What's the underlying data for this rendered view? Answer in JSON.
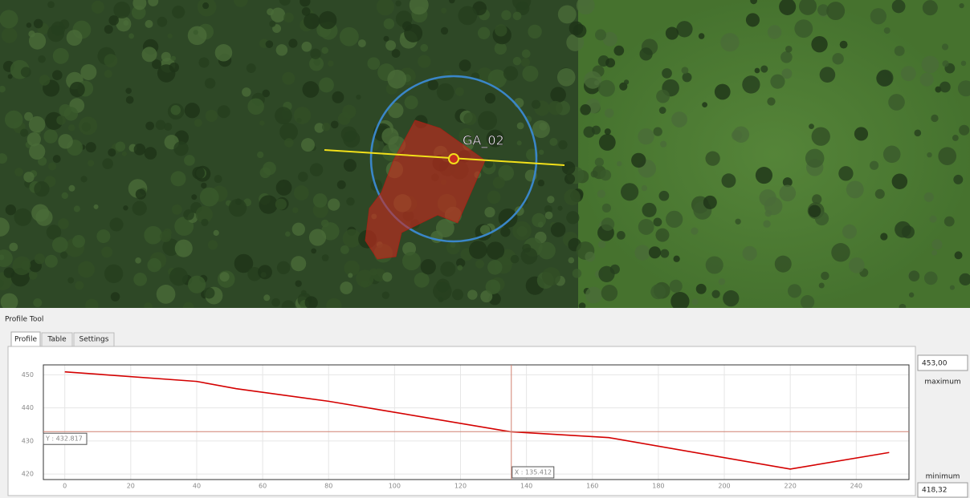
{
  "map": {
    "label": "GA_02"
  },
  "panel": {
    "title": "Profile Tool",
    "tabs": [
      "Profile",
      "Table",
      "Settings"
    ]
  },
  "controls": {
    "maximum": {
      "value": "453,00",
      "label": "maximum"
    },
    "minimum": {
      "value": "418,32",
      "label": "minimum"
    }
  },
  "chart_data": {
    "type": "line",
    "x": [
      0,
      40,
      52,
      80,
      95,
      135,
      165,
      220,
      250
    ],
    "values": [
      450.9,
      448,
      445.8,
      442,
      439.5,
      432.8,
      431,
      421.5,
      426.5
    ],
    "color": "#d40000",
    "xlim": [
      -6.5,
      256
    ],
    "ylim": [
      418.32,
      453.0
    ],
    "xticks": [
      0,
      20,
      40,
      60,
      80,
      100,
      120,
      140,
      160,
      180,
      200,
      220,
      240
    ],
    "yticks": [
      420,
      430,
      440,
      450
    ],
    "grid": true,
    "cursor_x": {
      "value": 135.412,
      "label": "X : 135.412"
    },
    "cursor_y": {
      "value": 432.817,
      "label": "Y : 432.817"
    }
  }
}
